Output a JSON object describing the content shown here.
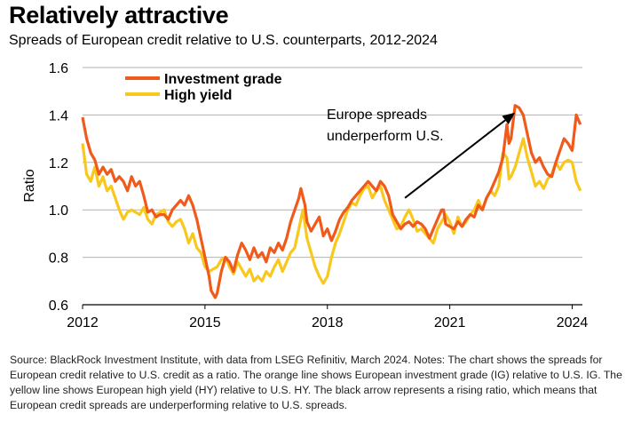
{
  "title": "Relatively attractive",
  "subtitle": "Spreads of European credit relative to U.S. counterparts, 2012-2024",
  "source_note": "Source: BlackRock Investment Institute, with data from LSEG Refinitiv, March 2024. Notes: The chart shows the spreads for European credit relative to U.S. credit as a ratio. The orange line shows European investment grade (IG) relative to U.S. IG. The yellow line shows European high yield (HY) relative to U.S. HY.  The black arrow represents a rising ratio, which means that European credit spreads are underperforming relative to U.S. spreads.",
  "chart_data": {
    "type": "line",
    "ylabel": "Ratio",
    "xlabel": "",
    "xlim": [
      2012,
      2024.25
    ],
    "ylim": [
      0.6,
      1.6
    ],
    "yticks": [
      "0.6",
      "0.8",
      "1.0",
      "1.2",
      "1.4",
      "1.6"
    ],
    "xticks": [
      "2012",
      "2015",
      "2018",
      "2021",
      "2024"
    ],
    "grid": true,
    "legend_position": "top-left",
    "annotation": {
      "lines": [
        "Europe spreads",
        "underperform U.S."
      ],
      "arrow": {
        "from": [
          2019.9,
          1.05
        ],
        "to": [
          2022.6,
          1.41
        ]
      }
    },
    "colors": {
      "investment_grade": "#f05a1a",
      "high_yield": "#f8c81c",
      "grid": "#b3b3b3",
      "arrow": "#000000"
    },
    "series": [
      {
        "name": "Investment grade",
        "color": "#f05a1a",
        "points": [
          [
            2012.0,
            1.39
          ],
          [
            2012.1,
            1.3
          ],
          [
            2012.2,
            1.24
          ],
          [
            2012.3,
            1.21
          ],
          [
            2012.4,
            1.15
          ],
          [
            2012.5,
            1.18
          ],
          [
            2012.6,
            1.15
          ],
          [
            2012.7,
            1.17
          ],
          [
            2012.8,
            1.12
          ],
          [
            2012.9,
            1.14
          ],
          [
            2013.0,
            1.12
          ],
          [
            2013.1,
            1.08
          ],
          [
            2013.2,
            1.14
          ],
          [
            2013.3,
            1.1
          ],
          [
            2013.4,
            1.12
          ],
          [
            2013.5,
            1.06
          ],
          [
            2013.6,
            0.99
          ],
          [
            2013.7,
            1.0
          ],
          [
            2013.8,
            0.97
          ],
          [
            2013.9,
            0.98
          ],
          [
            2014.0,
            0.98
          ],
          [
            2014.1,
            0.96
          ],
          [
            2014.2,
            1.0
          ],
          [
            2014.3,
            1.02
          ],
          [
            2014.4,
            1.04
          ],
          [
            2014.5,
            1.02
          ],
          [
            2014.6,
            1.06
          ],
          [
            2014.7,
            1.02
          ],
          [
            2014.8,
            0.96
          ],
          [
            2014.9,
            0.88
          ],
          [
            2015.0,
            0.8
          ],
          [
            2015.1,
            0.72
          ],
          [
            2015.15,
            0.66
          ],
          [
            2015.25,
            0.63
          ],
          [
            2015.3,
            0.65
          ],
          [
            2015.4,
            0.74
          ],
          [
            2015.5,
            0.8
          ],
          [
            2015.6,
            0.78
          ],
          [
            2015.7,
            0.74
          ],
          [
            2015.8,
            0.81
          ],
          [
            2015.9,
            0.86
          ],
          [
            2016.0,
            0.83
          ],
          [
            2016.1,
            0.79
          ],
          [
            2016.2,
            0.84
          ],
          [
            2016.3,
            0.8
          ],
          [
            2016.4,
            0.82
          ],
          [
            2016.5,
            0.78
          ],
          [
            2016.6,
            0.84
          ],
          [
            2016.7,
            0.82
          ],
          [
            2016.8,
            0.86
          ],
          [
            2016.9,
            0.83
          ],
          [
            2017.0,
            0.88
          ],
          [
            2017.1,
            0.95
          ],
          [
            2017.2,
            1.0
          ],
          [
            2017.3,
            1.05
          ],
          [
            2017.35,
            1.09
          ],
          [
            2017.45,
            1.02
          ],
          [
            2017.5,
            0.95
          ],
          [
            2017.6,
            0.91
          ],
          [
            2017.7,
            0.94
          ],
          [
            2017.8,
            0.97
          ],
          [
            2017.9,
            0.89
          ],
          [
            2018.0,
            0.92
          ],
          [
            2018.1,
            0.87
          ],
          [
            2018.2,
            0.91
          ],
          [
            2018.3,
            0.96
          ],
          [
            2018.4,
            0.99
          ],
          [
            2018.5,
            1.01
          ],
          [
            2018.6,
            1.04
          ],
          [
            2018.7,
            1.06
          ],
          [
            2018.8,
            1.08
          ],
          [
            2018.9,
            1.1
          ],
          [
            2019.0,
            1.12
          ],
          [
            2019.1,
            1.1
          ],
          [
            2019.2,
            1.08
          ],
          [
            2019.3,
            1.12
          ],
          [
            2019.4,
            1.1
          ],
          [
            2019.5,
            1.06
          ],
          [
            2019.6,
            0.98
          ],
          [
            2019.7,
            0.95
          ],
          [
            2019.8,
            0.92
          ],
          [
            2019.9,
            0.94
          ],
          [
            2020.0,
            0.95
          ],
          [
            2020.1,
            0.93
          ],
          [
            2020.2,
            0.95
          ],
          [
            2020.3,
            0.94
          ],
          [
            2020.4,
            0.92
          ],
          [
            2020.5,
            0.88
          ],
          [
            2020.6,
            0.92
          ],
          [
            2020.7,
            0.96
          ],
          [
            2020.8,
            1.0
          ],
          [
            2020.85,
            1.0
          ],
          [
            2020.9,
            0.94
          ],
          [
            2021.0,
            0.93
          ],
          [
            2021.1,
            0.92
          ],
          [
            2021.2,
            0.95
          ],
          [
            2021.3,
            0.93
          ],
          [
            2021.4,
            0.96
          ],
          [
            2021.5,
            0.98
          ],
          [
            2021.6,
            0.97
          ],
          [
            2021.7,
            1.02
          ],
          [
            2021.8,
            1.0
          ],
          [
            2021.9,
            1.05
          ],
          [
            2022.0,
            1.08
          ],
          [
            2022.1,
            1.12
          ],
          [
            2022.2,
            1.16
          ],
          [
            2022.3,
            1.22
          ],
          [
            2022.4,
            1.36
          ],
          [
            2022.45,
            1.28
          ],
          [
            2022.5,
            1.3
          ],
          [
            2022.6,
            1.44
          ],
          [
            2022.7,
            1.43
          ],
          [
            2022.8,
            1.4
          ],
          [
            2022.9,
            1.32
          ],
          [
            2023.0,
            1.24
          ],
          [
            2023.1,
            1.2
          ],
          [
            2023.2,
            1.22
          ],
          [
            2023.3,
            1.18
          ],
          [
            2023.4,
            1.15
          ],
          [
            2023.5,
            1.14
          ],
          [
            2023.6,
            1.2
          ],
          [
            2023.7,
            1.25
          ],
          [
            2023.8,
            1.3
          ],
          [
            2023.9,
            1.28
          ],
          [
            2024.0,
            1.25
          ],
          [
            2024.1,
            1.4
          ],
          [
            2024.15,
            1.38
          ],
          [
            2024.2,
            1.36
          ]
        ]
      },
      {
        "name": "High yield",
        "color": "#f8c81c",
        "points": [
          [
            2012.0,
            1.28
          ],
          [
            2012.1,
            1.15
          ],
          [
            2012.2,
            1.12
          ],
          [
            2012.3,
            1.18
          ],
          [
            2012.4,
            1.1
          ],
          [
            2012.5,
            1.14
          ],
          [
            2012.6,
            1.08
          ],
          [
            2012.7,
            1.1
          ],
          [
            2012.8,
            1.05
          ],
          [
            2012.9,
            1.0
          ],
          [
            2013.0,
            0.96
          ],
          [
            2013.1,
            0.99
          ],
          [
            2013.2,
            1.0
          ],
          [
            2013.3,
            0.99
          ],
          [
            2013.4,
            0.98
          ],
          [
            2013.5,
            1.01
          ],
          [
            2013.6,
            0.96
          ],
          [
            2013.7,
            0.94
          ],
          [
            2013.8,
            0.98
          ],
          [
            2013.9,
            0.99
          ],
          [
            2014.0,
            1.0
          ],
          [
            2014.1,
            0.95
          ],
          [
            2014.2,
            0.93
          ],
          [
            2014.3,
            0.95
          ],
          [
            2014.4,
            0.96
          ],
          [
            2014.5,
            0.92
          ],
          [
            2014.6,
            0.86
          ],
          [
            2014.7,
            0.9
          ],
          [
            2014.8,
            0.84
          ],
          [
            2014.9,
            0.82
          ],
          [
            2015.0,
            0.76
          ],
          [
            2015.1,
            0.74
          ],
          [
            2015.2,
            0.75
          ],
          [
            2015.3,
            0.76
          ],
          [
            2015.4,
            0.79
          ],
          [
            2015.5,
            0.8
          ],
          [
            2015.6,
            0.76
          ],
          [
            2015.7,
            0.73
          ],
          [
            2015.8,
            0.78
          ],
          [
            2015.9,
            0.75
          ],
          [
            2016.0,
            0.72
          ],
          [
            2016.1,
            0.75
          ],
          [
            2016.2,
            0.7
          ],
          [
            2016.3,
            0.72
          ],
          [
            2016.4,
            0.7
          ],
          [
            2016.5,
            0.74
          ],
          [
            2016.6,
            0.72
          ],
          [
            2016.7,
            0.76
          ],
          [
            2016.8,
            0.79
          ],
          [
            2016.9,
            0.74
          ],
          [
            2017.0,
            0.78
          ],
          [
            2017.1,
            0.82
          ],
          [
            2017.2,
            0.84
          ],
          [
            2017.3,
            0.92
          ],
          [
            2017.4,
            1.0
          ],
          [
            2017.5,
            0.88
          ],
          [
            2017.6,
            0.82
          ],
          [
            2017.7,
            0.76
          ],
          [
            2017.8,
            0.72
          ],
          [
            2017.9,
            0.69
          ],
          [
            2018.0,
            0.72
          ],
          [
            2018.1,
            0.8
          ],
          [
            2018.2,
            0.86
          ],
          [
            2018.3,
            0.9
          ],
          [
            2018.4,
            0.95
          ],
          [
            2018.5,
            1.0
          ],
          [
            2018.6,
            1.03
          ],
          [
            2018.7,
            1.02
          ],
          [
            2018.8,
            1.06
          ],
          [
            2018.9,
            1.09
          ],
          [
            2019.0,
            1.1
          ],
          [
            2019.1,
            1.05
          ],
          [
            2019.2,
            1.08
          ],
          [
            2019.3,
            1.1
          ],
          [
            2019.4,
            1.04
          ],
          [
            2019.5,
            1.0
          ],
          [
            2019.6,
            0.96
          ],
          [
            2019.7,
            0.92
          ],
          [
            2019.8,
            0.93
          ],
          [
            2019.9,
            0.97
          ],
          [
            2020.0,
            1.0
          ],
          [
            2020.1,
            0.96
          ],
          [
            2020.2,
            0.91
          ],
          [
            2020.3,
            0.92
          ],
          [
            2020.4,
            0.9
          ],
          [
            2020.5,
            0.88
          ],
          [
            2020.6,
            0.86
          ],
          [
            2020.7,
            0.92
          ],
          [
            2020.8,
            0.95
          ],
          [
            2020.9,
            0.98
          ],
          [
            2021.0,
            0.95
          ],
          [
            2021.1,
            0.9
          ],
          [
            2021.2,
            0.97
          ],
          [
            2021.3,
            0.93
          ],
          [
            2021.4,
            0.95
          ],
          [
            2021.5,
            0.98
          ],
          [
            2021.6,
            1.0
          ],
          [
            2021.7,
            1.04
          ],
          [
            2021.8,
            1.0
          ],
          [
            2021.9,
            1.05
          ],
          [
            2022.0,
            1.08
          ],
          [
            2022.1,
            1.06
          ],
          [
            2022.2,
            1.1
          ],
          [
            2022.3,
            1.24
          ],
          [
            2022.4,
            1.22
          ],
          [
            2022.45,
            1.13
          ],
          [
            2022.5,
            1.14
          ],
          [
            2022.6,
            1.18
          ],
          [
            2022.7,
            1.24
          ],
          [
            2022.8,
            1.3
          ],
          [
            2022.9,
            1.22
          ],
          [
            2023.0,
            1.16
          ],
          [
            2023.1,
            1.1
          ],
          [
            2023.2,
            1.12
          ],
          [
            2023.3,
            1.09
          ],
          [
            2023.4,
            1.13
          ],
          [
            2023.5,
            1.15
          ],
          [
            2023.6,
            1.2
          ],
          [
            2023.7,
            1.17
          ],
          [
            2023.8,
            1.2
          ],
          [
            2023.9,
            1.21
          ],
          [
            2024.0,
            1.2
          ],
          [
            2024.1,
            1.12
          ],
          [
            2024.2,
            1.08
          ]
        ]
      }
    ]
  }
}
